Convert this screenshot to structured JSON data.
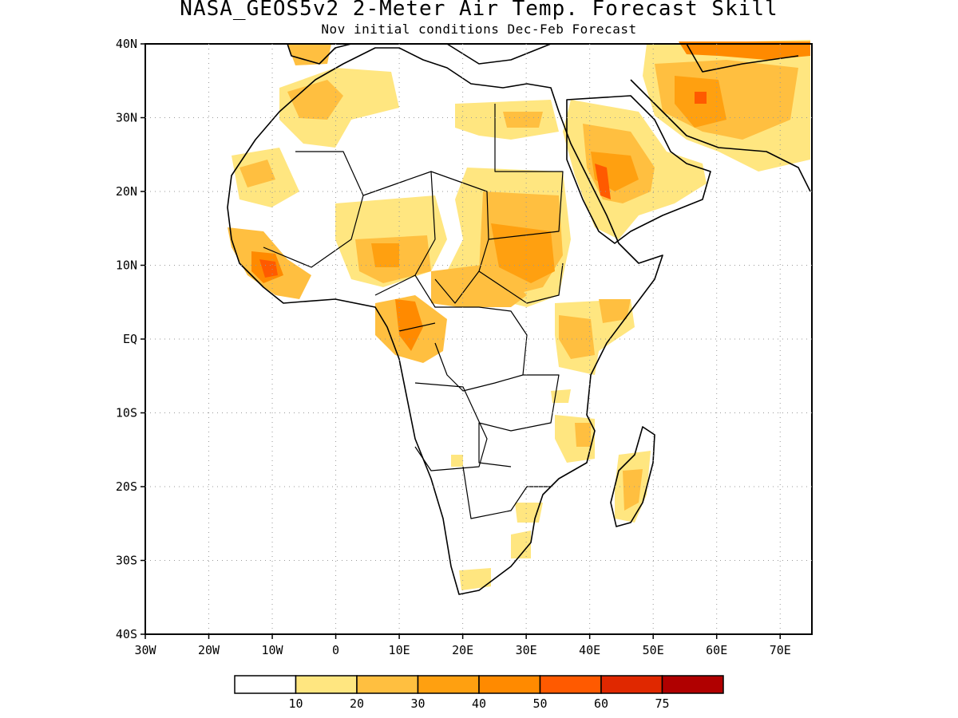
{
  "header": {
    "title": "NASA_GEOS5v2 2-Meter Air Temp. Forecast Skill",
    "subtitle": "Nov initial conditions  Dec-Feb Forecast"
  },
  "axes": {
    "x_ticks": [
      "30W",
      "20W",
      "10W",
      "0",
      "10E",
      "20E",
      "30E",
      "40E",
      "50E",
      "60E",
      "70E"
    ],
    "y_ticks": [
      "40N",
      "30N",
      "20N",
      "10N",
      "EQ",
      "10S",
      "20S",
      "30S",
      "40S"
    ]
  },
  "colorbar": {
    "labels": [
      "10",
      "20",
      "30",
      "40",
      "50",
      "60",
      "75"
    ],
    "colors": [
      "#ffffff",
      "#ffe680",
      "#ffbf40",
      "#ffa010",
      "#ff8a00",
      "#ff5a00",
      "#e02800",
      "#b00000"
    ]
  },
  "map": {
    "lon_range": [
      -30,
      75
    ],
    "lat_range": [
      -40,
      40
    ],
    "grid": "dotted",
    "land_color": "#ffffff",
    "ocean_color": "#ffffff"
  }
}
